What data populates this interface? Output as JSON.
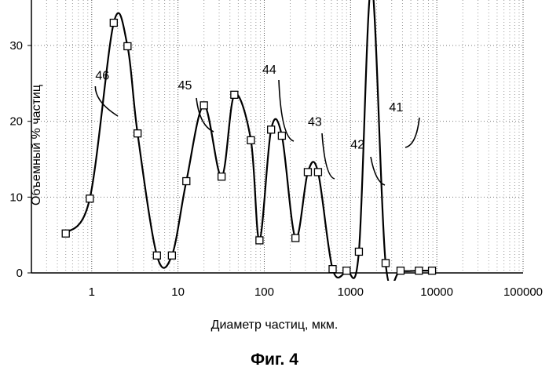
{
  "chart_data": {
    "type": "line",
    "xlabel": "Диаметр частиц, мкм.",
    "ylabel": "Объемный % частиц",
    "caption": "Фиг. 4",
    "x_scale": "log",
    "xlim": [
      0.2,
      100000
    ],
    "ylim": [
      0,
      36
    ],
    "x_ticks": [
      1,
      10,
      100,
      1000,
      10000,
      100000
    ],
    "x_tick_labels": [
      "1",
      "10",
      "100",
      "1000",
      "10000",
      "100000"
    ],
    "y_ticks": [
      0,
      10,
      20,
      30
    ],
    "y_tick_labels": [
      "0",
      "10",
      "20",
      "30"
    ],
    "grid": "dotted vertical and horizontal",
    "series": [
      {
        "markers": "square",
        "points": [
          {
            "x": 0.5,
            "y": 5.2
          },
          {
            "x": 0.95,
            "y": 9.8
          },
          {
            "x": 1.8,
            "y": 33.0
          },
          {
            "x": 2.6,
            "y": 29.9
          },
          {
            "x": 3.4,
            "y": 18.4
          },
          {
            "x": 5.7,
            "y": 2.3
          },
          {
            "x": 8.5,
            "y": 2.3
          },
          {
            "x": 12.5,
            "y": 12.1
          },
          {
            "x": 20,
            "y": 22.1
          },
          {
            "x": 32,
            "y": 12.7
          },
          {
            "x": 45,
            "y": 23.5
          },
          {
            "x": 70,
            "y": 17.5
          },
          {
            "x": 88,
            "y": 4.3
          },
          {
            "x": 120,
            "y": 18.9
          },
          {
            "x": 160,
            "y": 18.1
          },
          {
            "x": 230,
            "y": 4.6
          },
          {
            "x": 320,
            "y": 13.3
          },
          {
            "x": 420,
            "y": 13.3
          },
          {
            "x": 620,
            "y": 0.5
          },
          {
            "x": 900,
            "y": 0.3
          },
          {
            "x": 1250,
            "y": 2.8
          },
          {
            "x": 1750,
            "y": 38.0
          },
          {
            "x": 2550,
            "y": 1.3
          },
          {
            "x": 3800,
            "y": 0.3
          },
          {
            "x": 6200,
            "y": 0.3
          },
          {
            "x": 8800,
            "y": 0.3
          }
        ]
      }
    ],
    "annotations": [
      {
        "text": "46",
        "x": 1.1,
        "y": 25.5
      },
      {
        "text": "45",
        "x": 10.0,
        "y": 24.2
      },
      {
        "text": "44",
        "x": 95,
        "y": 26.3
      },
      {
        "text": "43",
        "x": 320,
        "y": 19.4
      },
      {
        "text": "42",
        "x": 1000,
        "y": 16.4
      },
      {
        "text": "41",
        "x": 2800,
        "y": 21.3
      }
    ]
  }
}
